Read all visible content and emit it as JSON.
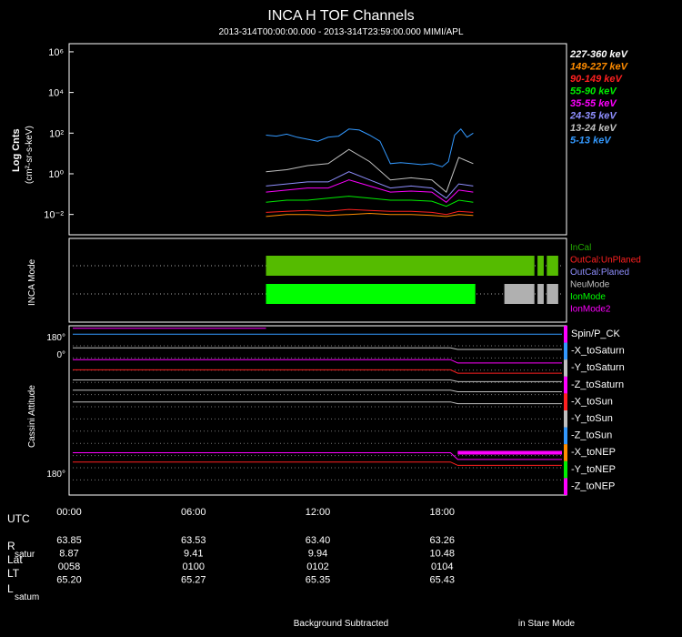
{
  "title": "INCA H TOF Channels",
  "subtitle": "2013-314T00:00:00.000 - 2013-314T23:59:00.000 MIMI/APL",
  "chart_data": [
    {
      "type": "line",
      "ylabel_main": "Log Cnts",
      "ylabel_unit": "(cm²-sr-s-keV)",
      "yscale": "log",
      "ytick_labels": [
        "10⁶",
        "10⁴",
        "10²",
        "10⁰",
        "10⁻²"
      ],
      "ytick_values": [
        6,
        4,
        2,
        0,
        -2
      ],
      "xlim_hours": [
        0,
        24
      ],
      "legend_position": "right",
      "series": [
        {
          "name": "227-360 keV",
          "color": "#ffffff",
          "x": [],
          "y": []
        },
        {
          "name": "149-227 keV",
          "color": "#ff8c00",
          "x": [
            9.5,
            10.5,
            11.5,
            12.5,
            13.5,
            14.5,
            15.5,
            16.5,
            17.5,
            18.2,
            18.8,
            19.5
          ],
          "y": [
            -2.1,
            -2.0,
            -2.0,
            -2.05,
            -2.0,
            -1.95,
            -2.0,
            -2.0,
            -2.05,
            -2.1,
            -2.0,
            -2.05
          ]
        },
        {
          "name": "90-149 keV",
          "color": "#ff2020",
          "x": [
            9.5,
            10.5,
            11.5,
            12.5,
            13.5,
            14.5,
            15.5,
            16.5,
            17.5,
            18.2,
            18.8,
            19.5
          ],
          "y": [
            -1.9,
            -1.85,
            -1.8,
            -1.85,
            -1.75,
            -1.8,
            -1.85,
            -1.85,
            -1.9,
            -2.0,
            -1.85,
            -1.9
          ]
        },
        {
          "name": "55-90 keV",
          "color": "#00ee00",
          "x": [
            9.5,
            10.5,
            11.5,
            12.5,
            13.5,
            14.5,
            15.5,
            16.5,
            17.5,
            18.2,
            18.8,
            19.5
          ],
          "y": [
            -1.4,
            -1.3,
            -1.3,
            -1.2,
            -1.1,
            -1.2,
            -1.3,
            -1.3,
            -1.35,
            -1.6,
            -1.3,
            -1.4
          ]
        },
        {
          "name": "35-55 keV",
          "color": "#ff00ff",
          "x": [
            9.5,
            10.5,
            11.5,
            12.5,
            13.5,
            14.5,
            15.5,
            16.5,
            17.5,
            18.2,
            18.8,
            19.5
          ],
          "y": [
            -0.9,
            -0.8,
            -0.7,
            -0.7,
            -0.3,
            -0.6,
            -0.9,
            -0.85,
            -0.9,
            -1.4,
            -0.8,
            -0.9
          ]
        },
        {
          "name": "24-35 keV",
          "color": "#8f8fff",
          "x": [
            9.5,
            10.5,
            11.5,
            12.5,
            13.5,
            14.5,
            15.5,
            16.5,
            17.5,
            18.2,
            18.8,
            19.5
          ],
          "y": [
            -0.6,
            -0.5,
            -0.4,
            -0.4,
            0.1,
            -0.3,
            -0.7,
            -0.6,
            -0.7,
            -1.2,
            -0.5,
            -0.6
          ]
        },
        {
          "name": "13-24 keV",
          "color": "#c0c0c0",
          "x": [
            9.5,
            10.5,
            11.5,
            12.5,
            13.5,
            14.5,
            15.5,
            16.5,
            17.5,
            18.2,
            18.8,
            19.5
          ],
          "y": [
            0.1,
            0.2,
            0.4,
            0.5,
            1.2,
            0.6,
            -0.3,
            -0.2,
            -0.3,
            -0.9,
            0.8,
            0.5
          ]
        },
        {
          "name": "5-13 keV",
          "color": "#3399ff",
          "x": [
            9.5,
            10.0,
            10.5,
            11.0,
            11.5,
            12.0,
            12.5,
            13.0,
            13.5,
            14.0,
            14.5,
            15.0,
            15.5,
            16.0,
            16.5,
            17.0,
            17.5,
            18.0,
            18.3,
            18.6,
            18.9,
            19.2,
            19.5
          ],
          "y": [
            1.9,
            1.85,
            1.95,
            1.8,
            1.7,
            1.6,
            1.8,
            1.85,
            2.2,
            2.15,
            1.9,
            1.6,
            0.5,
            0.55,
            0.5,
            0.45,
            0.5,
            0.35,
            0.6,
            1.9,
            2.2,
            1.8,
            2.0
          ]
        }
      ]
    },
    {
      "type": "bar",
      "ylabel": "INCA Mode",
      "legend_position": "right",
      "legend": [
        {
          "name": "InCal",
          "color": "#22aa00"
        },
        {
          "name": "OutCal:UnPlaned",
          "color": "#ff2020"
        },
        {
          "name": "OutCal:Planed",
          "color": "#8f8fff"
        },
        {
          "name": "NeuMode",
          "color": "#c0c0c0"
        },
        {
          "name": "IonMode",
          "color": "#00ff00"
        },
        {
          "name": "IonMode2",
          "color": "#ff00ff"
        }
      ],
      "rows": [
        {
          "segments": [
            {
              "start_h": 9.5,
              "end_h": 22.45,
              "color": "#55bb00"
            },
            {
              "start_h": 22.6,
              "end_h": 22.9,
              "color": "#55bb00"
            },
            {
              "start_h": 23.05,
              "end_h": 23.6,
              "color": "#55bb00"
            }
          ]
        },
        {
          "segments": [
            {
              "start_h": 9.5,
              "end_h": 19.6,
              "color": "#00ff00"
            },
            {
              "start_h": 21.0,
              "end_h": 22.45,
              "color": "#b0b0b0"
            },
            {
              "start_h": 22.6,
              "end_h": 22.9,
              "color": "#b0b0b0"
            },
            {
              "start_h": 23.05,
              "end_h": 23.6,
              "color": "#b0b0b0"
            }
          ]
        }
      ]
    },
    {
      "type": "line",
      "ylabel": "Cassini Attitude",
      "ytick_labels": [
        "180°",
        "0°",
        "180°"
      ],
      "legend_position": "right",
      "series": [
        {
          "name": "Spin/P_CK",
          "color": "#ff00ff",
          "y_before": 0.985,
          "y_after": 0.985,
          "x_end": 9.5
        },
        {
          "name": "-X_toSaturn",
          "color": "#3399ff",
          "y_before": 0.95,
          "y_after": 0.95
        },
        {
          "name": "-Y_toSaturn",
          "color": "#c0c0c0",
          "y_before": 0.87,
          "y_after": 0.86
        },
        {
          "name": "-Z_toSaturn",
          "color": "#ff00ff",
          "y_before": 0.8,
          "y_after": 0.78
        },
        {
          "name": "-X_toSun",
          "color": "#ff2020",
          "y_before": 0.74,
          "y_after": 0.72
        },
        {
          "name": "-Y_toSun",
          "color": "#c0c0c0",
          "y_before": 0.68,
          "y_after": 0.67
        },
        {
          "name": "-Z_toSun",
          "color": "#c0c0c0",
          "y_before": 0.62,
          "y_after": 0.61
        },
        {
          "name": "-X_toNEP",
          "color": "#c0c0c0",
          "y_before": 0.55,
          "y_after": 0.54
        },
        {
          "name": "-Y_toNEP",
          "color": "#ff00ff",
          "y_before": 0.25,
          "y_after": 0.21
        },
        {
          "name": "-Z_toNEP",
          "color": "#ff2020",
          "y_before": 0.195,
          "y_after": 0.175
        }
      ]
    }
  ],
  "time_axis": {
    "x_labels": [
      "00:00",
      "06:00",
      "12:00",
      "18:00"
    ],
    "x_hours": [
      0,
      6,
      12,
      18
    ],
    "row_labels": [
      "UTC",
      "R",
      "Lat",
      "LT",
      "L"
    ],
    "row_subscripts": [
      "",
      "satur",
      "",
      "",
      "satum"
    ],
    "values": [
      [
        "63.85",
        "63.53",
        "63.40",
        "63.26"
      ],
      [
        "8.87",
        "9.41",
        "9.94",
        "10.48"
      ],
      [
        "0058",
        "0100",
        "0102",
        "0104"
      ],
      [
        "65.20",
        "65.27",
        "65.35",
        "65.43"
      ]
    ]
  },
  "footer": {
    "left": "Background Subtracted",
    "right": "in Stare Mode"
  }
}
